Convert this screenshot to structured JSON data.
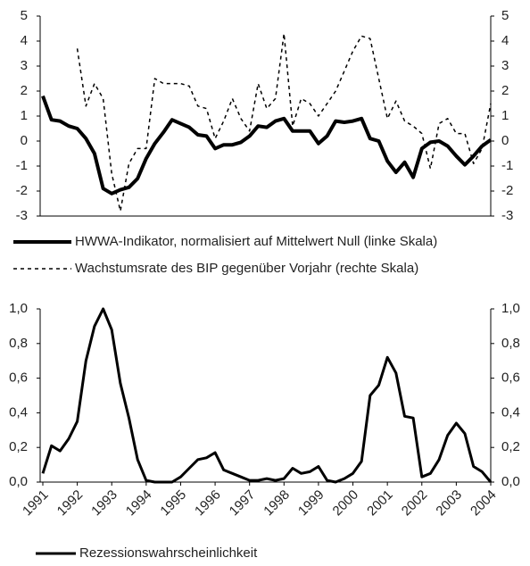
{
  "chart_data": [
    {
      "type": "line",
      "ylim": [
        -3,
        5
      ],
      "yticks": [
        -3,
        -2,
        -1,
        0,
        1,
        2,
        3,
        4,
        5
      ],
      "y2lim": [
        -3,
        5
      ],
      "y2ticks": [
        -3,
        -2,
        -1,
        0,
        1,
        2,
        3,
        4,
        5
      ],
      "series": [
        {
          "name": "HWWA-Indikator, normalisiert auf Mittelwert Null (linke Skala)",
          "color": "#000000",
          "linestyle": "solid",
          "linewidth": 4,
          "values": [
            1.8,
            0.85,
            0.8,
            0.6,
            0.5,
            0.1,
            -0.5,
            -1.9,
            -2.1,
            -1.95,
            -1.85,
            -1.5,
            -0.7,
            -0.1,
            0.35,
            0.85,
            0.7,
            0.55,
            0.25,
            0.2,
            -0.3,
            -0.15,
            -0.15,
            -0.05,
            0.2,
            0.6,
            0.55,
            0.8,
            0.9,
            0.4,
            0.4,
            0.4,
            -0.1,
            0.2,
            0.8,
            0.75,
            0.8,
            0.9,
            0.1,
            0.0,
            -0.8,
            -1.25,
            -0.85,
            -1.45,
            -0.3,
            -0.05,
            0.0,
            -0.2,
            -0.6,
            -0.95,
            -0.6,
            -0.2,
            0.05
          ]
        },
        {
          "name": "Wachstumsrate des BIP gegenüber Vorjahr (rechte Skala)",
          "color": "#000000",
          "linestyle": "dashed",
          "linewidth": 1.5,
          "axis": "y2",
          "values": [
            null,
            null,
            null,
            null,
            3.7,
            1.4,
            2.3,
            1.7,
            -1.3,
            -2.8,
            -0.9,
            -0.3,
            -0.3,
            2.5,
            2.3,
            2.3,
            2.3,
            2.2,
            1.4,
            1.3,
            0.1,
            0.8,
            1.7,
            0.9,
            0.4,
            2.3,
            1.3,
            1.7,
            4.3,
            0.6,
            1.7,
            1.5,
            1.0,
            1.5,
            2.0,
            2.8,
            3.6,
            4.2,
            4.1,
            2.5,
            0.9,
            1.6,
            0.8,
            0.6,
            0.3,
            -1.1,
            0.7,
            0.9,
            0.3,
            0.3,
            -0.9,
            -0.3,
            1.5
          ]
        }
      ]
    },
    {
      "type": "line",
      "categories": [
        "1991",
        null,
        null,
        null,
        "1992",
        null,
        null,
        null,
        "1993",
        null,
        null,
        null,
        "1994",
        null,
        null,
        null,
        "1995",
        null,
        null,
        null,
        "1996",
        null,
        null,
        null,
        "1997",
        null,
        null,
        null,
        "1998",
        null,
        null,
        null,
        "1999",
        null,
        null,
        null,
        "2000",
        null,
        null,
        null,
        "2001",
        null,
        null,
        null,
        "2002",
        null,
        null,
        null,
        "2003",
        null,
        null,
        null,
        "2004"
      ],
      "ylim": [
        0,
        1
      ],
      "yticks": [
        {
          "value": 0,
          "label": "0,0"
        },
        {
          "value": 0.2,
          "label": "0,2"
        },
        {
          "value": 0.4,
          "label": "0,4"
        },
        {
          "value": 0.6,
          "label": "0,6"
        },
        {
          "value": 0.8,
          "label": "0,8"
        },
        {
          "value": 1,
          "label": "1,0"
        }
      ],
      "y2lim": [
        0,
        1
      ],
      "y2ticks": [
        {
          "value": 0,
          "label": "0,0"
        },
        {
          "value": 0.2,
          "label": "0,2"
        },
        {
          "value": 0.4,
          "label": "0,4"
        },
        {
          "value": 0.6,
          "label": "0,6"
        },
        {
          "value": 0.8,
          "label": "0,8"
        },
        {
          "value": 1,
          "label": "1,0"
        }
      ],
      "series": [
        {
          "name": "Rezessionswahrscheinlichkeit",
          "color": "#000000",
          "linestyle": "solid",
          "linewidth": 3,
          "values": [
            0.05,
            0.21,
            0.18,
            0.25,
            0.35,
            0.7,
            0.9,
            1.0,
            0.88,
            0.57,
            0.37,
            0.13,
            0.01,
            0.0,
            0.0,
            0.0,
            0.03,
            0.08,
            0.13,
            0.14,
            0.17,
            0.07,
            0.05,
            0.03,
            0.01,
            0.01,
            0.02,
            0.01,
            0.02,
            0.08,
            0.05,
            0.06,
            0.09,
            0.01,
            0.0,
            0.02,
            0.05,
            0.12,
            0.5,
            0.56,
            0.72,
            0.63,
            0.38,
            0.37,
            0.03,
            0.05,
            0.13,
            0.27,
            0.34,
            0.28,
            0.09,
            0.06,
            0.0
          ]
        }
      ]
    }
  ]
}
